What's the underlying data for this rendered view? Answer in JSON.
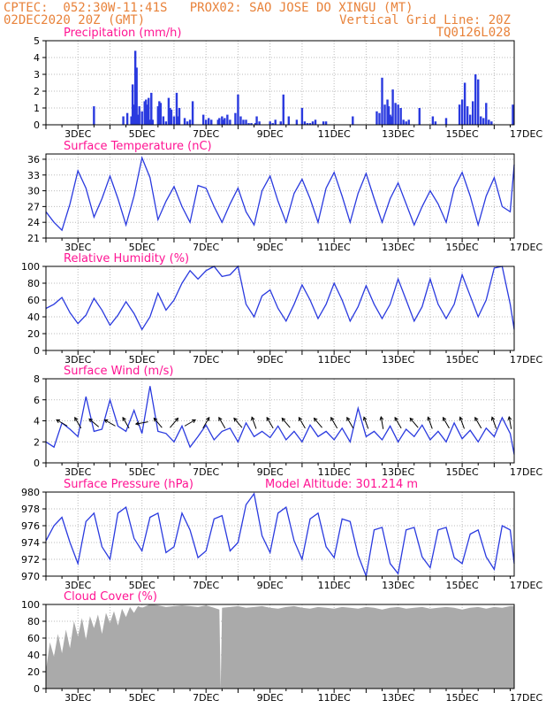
{
  "header": {
    "line1": "CPTEC:  052:30W-11:41S   PROX02: SAO JOSE DO XINGU (MT)",
    "line2_left": "02DEC2020 20Z (GMT)",
    "line2_right": "Vertical Grid Line: 20Z",
    "line3_right": "TQ0126L028"
  },
  "colors": {
    "title": "#ff1493",
    "header": "#e8823a",
    "line": "#2a3adf",
    "bar": "#2a3adf",
    "cloud": "#aaaaaa",
    "grid": "#bbbbbb"
  },
  "chart_data": [
    {
      "type": "bar",
      "title": "Precipitation (mm/h)",
      "x_tick_labels": [
        "3DEC",
        "5DEC",
        "7DEC",
        "9DEC",
        "11DEC",
        "13DEC",
        "15DEC",
        "17DEC"
      ],
      "ylim": [
        0,
        5
      ],
      "yticks": [
        0,
        1,
        2,
        3,
        4,
        5
      ],
      "hours_from_start": [
        36,
        58,
        61,
        64,
        65,
        66,
        67,
        68,
        69,
        70,
        72,
        74,
        75,
        76,
        77,
        78,
        79,
        80,
        84,
        85,
        86,
        88,
        90,
        92,
        93,
        94,
        96,
        98,
        99,
        100,
        104,
        106,
        108,
        110,
        118,
        120,
        122,
        124,
        129,
        130,
        132,
        133,
        134,
        136,
        138,
        142,
        144,
        146,
        148,
        150,
        152,
        154,
        157,
        158,
        160,
        168,
        170,
        172,
        176,
        178,
        182,
        188,
        192,
        194,
        196,
        198,
        200,
        202,
        208,
        210,
        230,
        248,
        250,
        252,
        254,
        256,
        257,
        258,
        259,
        260,
        262,
        264,
        266,
        268,
        270,
        272,
        280,
        290,
        292,
        300,
        310,
        312,
        314,
        316,
        318,
        320,
        322,
        324,
        326,
        328,
        330,
        332,
        334,
        350
      ],
      "values": [
        1.1,
        0.5,
        0.7,
        0.5,
        2.4,
        1.2,
        4.4,
        3.4,
        0.6,
        1.1,
        0.8,
        1.4,
        1.5,
        1.2,
        1.6,
        0.3,
        1.9,
        0.3,
        1.1,
        1.4,
        1.3,
        0.5,
        0.2,
        1.6,
        1.0,
        0.9,
        0.5,
        1.9,
        0.5,
        1.0,
        0.4,
        0.2,
        0.3,
        1.4,
        0.6,
        0.3,
        0.4,
        0.3,
        0.3,
        0.4,
        0.5,
        0.3,
        0.4,
        0.6,
        0.3,
        0.7,
        1.8,
        0.5,
        0.3,
        0.3,
        0.1,
        0.1,
        0.1,
        0.5,
        0.2,
        0.2,
        0.1,
        0.3,
        0.2,
        1.8,
        0.5,
        0.3,
        1.0,
        0.2,
        0.1,
        0.1,
        0.2,
        0.3,
        0.2,
        0.2,
        0.5,
        0.8,
        0.7,
        2.8,
        1.2,
        1.5,
        1.1,
        0.6,
        0.5,
        2.1,
        1.3,
        1.2,
        1.0,
        0.3,
        0.2,
        0.3,
        1.0,
        0.5,
        0.2,
        0.4,
        1.2,
        1.5,
        2.5,
        1.1,
        0.6,
        1.4,
        3.0,
        2.7,
        0.5,
        0.4,
        1.3,
        0.3,
        0.2,
        1.2
      ]
    },
    {
      "type": "line",
      "title": "Surface Temperature (nC)",
      "x_tick_labels": [
        "3DEC",
        "5DEC",
        "7DEC",
        "9DEC",
        "11DEC",
        "13DEC",
        "15DEC",
        "17DEC"
      ],
      "ylim": [
        21,
        37
      ],
      "yticks": [
        21,
        24,
        27,
        30,
        33,
        36
      ],
      "x_hours": [
        0,
        6,
        12,
        18,
        24,
        30,
        36,
        42,
        48,
        54,
        60,
        66,
        72,
        78,
        84,
        90,
        96,
        102,
        108,
        114,
        120,
        126,
        132,
        138,
        144,
        150,
        156,
        162,
        168,
        174,
        180,
        186,
        192,
        198,
        204,
        210,
        216,
        222,
        228,
        234,
        240,
        246,
        252,
        258,
        264,
        270,
        276,
        282,
        288,
        294,
        300,
        306,
        312,
        318,
        324,
        330,
        336,
        342,
        348,
        351
      ],
      "values": [
        26,
        24,
        22.5,
        27.5,
        33.8,
        30.5,
        25,
        28.5,
        32.8,
        28.5,
        23.5,
        29,
        36.3,
        32.5,
        24.5,
        28,
        30.8,
        27,
        24,
        31,
        30.5,
        27,
        24,
        27.5,
        30.5,
        26,
        23.5,
        30,
        32.8,
        28,
        24,
        29.5,
        32.2,
        28.5,
        24,
        30.5,
        33.5,
        29,
        24,
        29.5,
        33.3,
        28.5,
        24,
        28.5,
        31.5,
        27.5,
        23.5,
        27,
        30,
        27.5,
        24,
        30.5,
        33.5,
        29,
        23.5,
        29,
        32.5,
        27,
        26,
        35
      ]
    },
    {
      "type": "line",
      "title": "Relative Humidity (%)",
      "x_tick_labels": [
        "3DEC",
        "5DEC",
        "7DEC",
        "9DEC",
        "11DEC",
        "13DEC",
        "15DEC",
        "17DEC"
      ],
      "ylim": [
        0,
        100
      ],
      "yticks": [
        0,
        20,
        40,
        60,
        80,
        100
      ],
      "x_hours": [
        0,
        6,
        12,
        18,
        24,
        30,
        36,
        42,
        48,
        54,
        60,
        66,
        72,
        78,
        84,
        90,
        96,
        102,
        108,
        114,
        120,
        126,
        132,
        138,
        144,
        150,
        156,
        162,
        168,
        174,
        180,
        186,
        192,
        198,
        204,
        210,
        216,
        222,
        228,
        234,
        240,
        246,
        252,
        258,
        264,
        270,
        276,
        282,
        288,
        294,
        300,
        306,
        312,
        318,
        324,
        330,
        336,
        342,
        348,
        351
      ],
      "values": [
        50,
        55,
        63,
        45,
        32,
        42,
        62,
        48,
        30,
        42,
        58,
        44,
        25,
        40,
        68,
        48,
        60,
        80,
        95,
        85,
        95,
        100,
        88,
        90,
        100,
        55,
        40,
        65,
        72,
        50,
        35,
        55,
        78,
        60,
        38,
        55,
        80,
        60,
        35,
        52,
        77,
        55,
        38,
        55,
        85,
        60,
        35,
        52,
        85,
        55,
        38,
        55,
        90,
        65,
        40,
        60,
        98,
        100,
        55,
        25
      ]
    },
    {
      "type": "line",
      "title": "Surface Wind (m/s)",
      "x_tick_labels": [
        "3DEC",
        "5DEC",
        "7DEC",
        "9DEC",
        "11DEC",
        "13DEC",
        "15DEC",
        "17DEC"
      ],
      "ylim": [
        0,
        8
      ],
      "yticks": [
        0,
        2,
        4,
        6,
        8
      ],
      "x_hours": [
        0,
        6,
        12,
        18,
        24,
        30,
        36,
        42,
        48,
        54,
        60,
        66,
        72,
        78,
        84,
        90,
        96,
        102,
        108,
        114,
        120,
        126,
        132,
        138,
        144,
        150,
        156,
        162,
        168,
        174,
        180,
        186,
        192,
        198,
        204,
        210,
        216,
        222,
        228,
        234,
        240,
        246,
        252,
        258,
        264,
        270,
        276,
        282,
        288,
        294,
        300,
        306,
        312,
        318,
        324,
        330,
        336,
        342,
        348,
        351
      ],
      "values": [
        2,
        1.5,
        3.8,
        3.2,
        2.5,
        6.3,
        3.0,
        3.2,
        6.0,
        3.5,
        3.0,
        5.0,
        2.8,
        7.3,
        3.0,
        2.8,
        2.0,
        3.5,
        1.5,
        2.5,
        3.6,
        2.2,
        3.0,
        3.3,
        2.0,
        3.8,
        2.5,
        3.0,
        2.4,
        3.5,
        2.2,
        3.0,
        2.0,
        3.6,
        2.5,
        3.0,
        2.2,
        3.3,
        2.0,
        5.2,
        2.5,
        3.0,
        2.2,
        3.5,
        2.0,
        3.2,
        2.5,
        3.6,
        2.2,
        3.0,
        2.0,
        3.8,
        2.3,
        3.1,
        2.0,
        3.3,
        2.5,
        4.3,
        2.8,
        0.8
      ],
      "arrow_hours": [
        12,
        24,
        36,
        48,
        60,
        72,
        84,
        96,
        108,
        120,
        132,
        144,
        156,
        168,
        180,
        192,
        204,
        216,
        228,
        240,
        252,
        264,
        276,
        288,
        300,
        312,
        324,
        336,
        348
      ],
      "arrow_dir_deg": [
        300,
        330,
        310,
        300,
        330,
        260,
        320,
        40,
        60,
        30,
        330,
        320,
        340,
        330,
        320,
        330,
        320,
        330,
        330,
        340,
        350,
        330,
        320,
        340,
        330,
        340,
        330,
        340,
        350
      ]
    },
    {
      "type": "line",
      "title": "Surface Pressure (hPa)",
      "annotation": "Model Altitude: 301.214 m",
      "x_tick_labels": [
        "3DEC",
        "5DEC",
        "7DEC",
        "9DEC",
        "11DEC",
        "13DEC",
        "15DEC",
        "17DEC"
      ],
      "ylim": [
        970,
        980
      ],
      "yticks": [
        970,
        972,
        974,
        976,
        978,
        980
      ],
      "x_hours": [
        0,
        6,
        12,
        18,
        24,
        30,
        36,
        42,
        48,
        54,
        60,
        66,
        72,
        78,
        84,
        90,
        96,
        102,
        108,
        114,
        120,
        126,
        132,
        138,
        144,
        150,
        156,
        162,
        168,
        174,
        180,
        186,
        192,
        198,
        204,
        210,
        216,
        222,
        228,
        234,
        240,
        246,
        252,
        258,
        264,
        270,
        276,
        282,
        288,
        294,
        300,
        306,
        312,
        318,
        324,
        330,
        336,
        342,
        348,
        351
      ],
      "values": [
        974.2,
        976,
        977,
        974,
        971.5,
        976.5,
        977.5,
        973.5,
        972,
        977.5,
        978.2,
        974.5,
        973,
        977,
        977.5,
        972.8,
        973.5,
        977.5,
        975.5,
        972.2,
        973,
        976.8,
        977.2,
        973,
        974,
        978.5,
        979.8,
        974.8,
        972.8,
        977.5,
        978.2,
        974.2,
        972,
        976.8,
        977.5,
        973.5,
        972.2,
        976.8,
        976.5,
        972.5,
        970,
        975.5,
        975.8,
        971.5,
        970.3,
        975.5,
        975.8,
        972.3,
        971,
        975.5,
        975.8,
        972.2,
        971.5,
        975,
        975.5,
        972.3,
        970.8,
        976,
        975.5,
        971.5
      ]
    },
    {
      "type": "area",
      "title": "Cloud Cover (%)",
      "x_tick_labels": [
        "3DEC",
        "5DEC",
        "7DEC",
        "9DEC",
        "11DEC",
        "13DEC",
        "15DEC",
        "17DEC"
      ],
      "ylim": [
        0,
        100
      ],
      "yticks": [
        0,
        20,
        40,
        60,
        80,
        100
      ],
      "x_hours": [
        0,
        3,
        6,
        9,
        12,
        15,
        18,
        21,
        24,
        27,
        30,
        33,
        36,
        39,
        42,
        45,
        48,
        51,
        54,
        57,
        60,
        63,
        66,
        69,
        72,
        75,
        78,
        84,
        90,
        96,
        102,
        108,
        114,
        120,
        126,
        130,
        131,
        132,
        138,
        144,
        150,
        156,
        162,
        168,
        174,
        180,
        186,
        192,
        198,
        204,
        210,
        216,
        222,
        228,
        234,
        240,
        246,
        252,
        258,
        264,
        270,
        276,
        282,
        288,
        294,
        300,
        306,
        312,
        318,
        324,
        330,
        336,
        342,
        348,
        351
      ],
      "values": [
        22,
        55,
        38,
        65,
        42,
        70,
        48,
        80,
        62,
        84,
        58,
        86,
        72,
        88,
        65,
        90,
        78,
        92,
        75,
        95,
        85,
        97,
        90,
        98,
        96,
        98,
        100,
        99,
        97,
        98,
        99,
        98,
        97,
        99,
        96,
        94,
        0,
        96,
        97,
        98,
        96,
        97,
        98,
        96,
        95,
        97,
        98,
        96,
        95,
        97,
        96,
        95,
        97,
        96,
        95,
        97,
        96,
        94,
        96,
        97,
        95,
        96,
        97,
        95,
        96,
        97,
        96,
        94,
        96,
        97,
        95,
        97,
        96,
        98,
        98
      ]
    }
  ]
}
